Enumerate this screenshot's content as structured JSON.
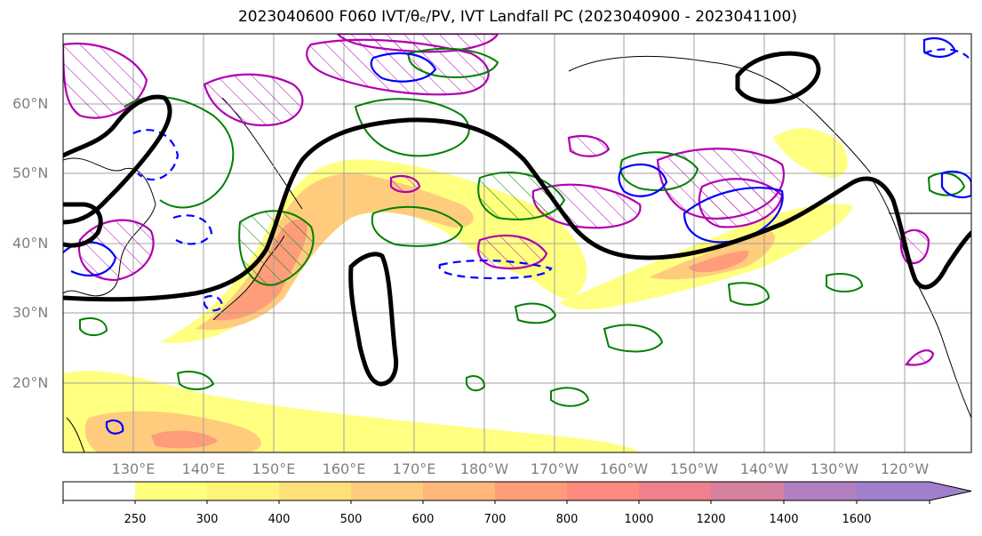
{
  "title": "2023040600 F060 IVT/θₑ/PV, IVT Landfall PC (2023040900 - 2023041100)",
  "latitude_labels": [
    "60°N",
    "50°N",
    "40°N",
    "30°N",
    "20°N"
  ],
  "longitude_labels": [
    "130°E",
    "140°E",
    "150°E",
    "160°E",
    "170°E",
    "180°W",
    "170°W",
    "160°W",
    "150°W",
    "140°W",
    "130°W",
    "120°W"
  ],
  "colorbar": {
    "levels": [
      "250",
      "300",
      "400",
      "500",
      "600",
      "700",
      "800",
      "1000",
      "1200",
      "1400",
      "1600"
    ],
    "colors": [
      "#ffffff",
      "#ffff7f",
      "#fff47a",
      "#ffe078",
      "#ffcc7d",
      "#ffb77a",
      "#ff9c7a",
      "#ff8a80",
      "#f0808c",
      "#d680a0",
      "#b080c0",
      "#a080cc"
    ]
  },
  "contour_colors": {
    "thick_line": "#000000",
    "theta_e": "#008000",
    "pv_positive": "#0000ff",
    "pv_negative": "#0000ff",
    "landfall_pc": "#b000b0"
  }
}
